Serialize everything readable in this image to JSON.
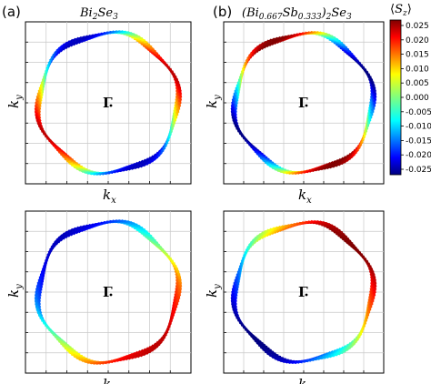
{
  "figure": {
    "panel_labels": [
      "(a)",
      "(b)"
    ],
    "column_titles": [
      {
        "base": "Bi",
        "sub1": "2",
        "mid": "Se",
        "sub2": "3"
      },
      {
        "text": "(Bi",
        "sub1": "0.667",
        "mid": "Sb",
        "sub2": "0.333",
        "close": ")",
        "sub3": "2",
        "tail": "Se",
        "sub4": "3"
      }
    ],
    "gamma_label": "Γ",
    "xlabel": "k",
    "xlabel_sub": "x",
    "ylabel": "k",
    "ylabel_sub": "y",
    "colorbar": {
      "label_left": "⟨",
      "label_s": "S",
      "label_sub": "z",
      "label_right": "⟩",
      "ticks": [
        "0.025",
        "0.020",
        "0.015",
        "0.010",
        "0.005",
        "0.000",
        "-0.005",
        "-0.010",
        "-0.015",
        "-0.020",
        "-0.025"
      ],
      "range": [
        -0.025,
        0.025
      ],
      "colormap": "jet"
    }
  },
  "chart_data": [
    {
      "type": "scatter",
      "panel": "(a) top",
      "title": "Bi2Se3",
      "xlabel": "kx",
      "ylabel": "ky",
      "description_series": [
        {
          "name": "",
          "pattern": "two-fold",
          "phase_deg": 0,
          "amplitude": 0.022
        }
      ]
    },
    {
      "type": "scatter",
      "panel": "(b) top",
      "title": "(Bi0.667Sb0.333)2Se3",
      "xlabel": "kx",
      "ylabel": "ky",
      "description_series": [
        {
          "name": "",
          "pattern": "two-fold",
          "phase_deg": 90,
          "amplitude": 0.025
        }
      ]
    },
    {
      "type": "scatter",
      "panel": "(a) bottom",
      "xlabel": "kx",
      "ylabel": "ky",
      "description_series": [
        {
          "name": "",
          "pattern": "one-fold",
          "phase_deg": 315,
          "amplitude": 0.022
        }
      ]
    },
    {
      "type": "scatter",
      "panel": "(b) bottom",
      "xlabel": "kx",
      "ylabel": "ky",
      "description_series": [
        {
          "name": "",
          "pattern": "one-fold",
          "phase_deg": 45,
          "amplitude": 0.025
        }
      ]
    }
  ]
}
